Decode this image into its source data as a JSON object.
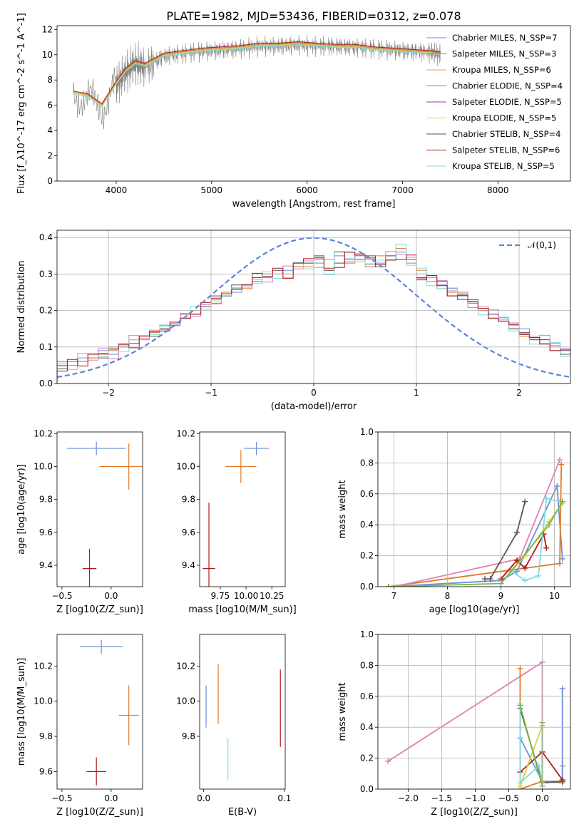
{
  "title": "PLATE=1982, MJD=53436, FIBERID=0312, z=0.078",
  "colors": {
    "Chabrier MILES": "#6a8fd9",
    "Salpeter MILES": "#e07a2a",
    "Kroupa MILES": "#e3a043",
    "Chabrier ELODIE": "#7a8a6a",
    "Salpeter ELODIE": "#9a3ab5",
    "Kroupa ELODIE": "#c9d84a",
    "Chabrier STELIB": "#555555",
    "Salpeter STELIB": "#b01818",
    "Kroupa STELIB": "#7fdbe0",
    "extra_pink": "#e37fb8",
    "extra_green": "#7ab63a",
    "gaussian": "#5a86d6",
    "data": "#808080"
  },
  "chart_data": [
    {
      "type": "line",
      "panel": "spectrum",
      "xlabel": "wavelength [Angstrom, rest frame]",
      "ylabel": "Flux [f_λ10^-17 erg cm^-2 s^-1 A^-1]",
      "xlim": [
        3380,
        8760
      ],
      "ylim": [
        0,
        12.3
      ],
      "xticks": [
        4000,
        5000,
        6000,
        7000,
        8000
      ],
      "yticks": [
        0,
        2,
        4,
        6,
        8,
        10,
        12
      ],
      "legend_position": "right",
      "legend": [
        "Chabrier MILES, N_SSP=7",
        "Salpeter MILES, N_SSP=3",
        "Kroupa MILES, N_SSP=6",
        "Chabrier ELODIE, N_SSP=4",
        "Salpeter ELODIE, N_SSP=5",
        "Kroupa ELODIE, N_SSP=5",
        "Chabrier STELIB, N_SSP=4",
        "Salpeter STELIB, N_SSP=6",
        "Kroupa STELIB, N_SSP=5"
      ],
      "series": [
        {
          "role": "data",
          "x": [
            3550,
            3700,
            3850,
            4000,
            4100,
            4200,
            4300,
            4500,
            4700,
            4900,
            5100,
            5300,
            5500,
            5700,
            5900,
            6100,
            6300,
            6500,
            6700,
            6900,
            7100,
            7300,
            7400
          ],
          "y": [
            7.0,
            6.5,
            5.8,
            7.6,
            8.6,
            9.3,
            9.0,
            9.9,
            10.1,
            10.3,
            10.4,
            10.5,
            10.7,
            10.7,
            10.8,
            10.7,
            10.7,
            10.6,
            10.5,
            10.4,
            10.3,
            10.2,
            10.0
          ]
        },
        {
          "role": "model",
          "x": [
            3550,
            3700,
            3850,
            4000,
            4100,
            4200,
            4300,
            4500,
            4700,
            4900,
            5100,
            5300,
            5500,
            5700,
            5900,
            6100,
            6300,
            6500,
            6700,
            6900,
            7100,
            7300,
            7400
          ],
          "y": [
            7.0,
            6.8,
            6.0,
            7.8,
            8.8,
            9.4,
            9.2,
            10.0,
            10.2,
            10.4,
            10.5,
            10.6,
            10.8,
            10.8,
            10.9,
            10.8,
            10.7,
            10.7,
            10.5,
            10.4,
            10.3,
            10.2,
            10.1
          ]
        }
      ]
    },
    {
      "type": "bar",
      "panel": "residual-histogram",
      "xlabel": "(data-model)/error",
      "ylabel": "Normed distribution",
      "xlim": [
        -2.5,
        2.5
      ],
      "ylim": [
        0,
        0.42
      ],
      "xticks": [
        -2,
        -1,
        0,
        1,
        2
      ],
      "yticks": [
        0.0,
        0.1,
        0.2,
        0.3,
        0.4
      ],
      "grid": true,
      "legend_position": "top-right",
      "legend": [
        "N(0,1)"
      ],
      "bin_width": 0.1,
      "series": [
        {
          "values": [
            0.06,
            0.06,
            0.07,
            0.07,
            0.09,
            0.08,
            0.11,
            0.12,
            0.13,
            0.14,
            0.16,
            0.17,
            0.18,
            0.19,
            0.21,
            0.23,
            0.24,
            0.25,
            0.27,
            0.28,
            0.29,
            0.3,
            0.31,
            0.32,
            0.33,
            0.33,
            0.34,
            0.35,
            0.34,
            0.35,
            0.34,
            0.33,
            0.35,
            0.36,
            0.34,
            0.3,
            0.29,
            0.27,
            0.26,
            0.24,
            0.22,
            0.21,
            0.19,
            0.18,
            0.16,
            0.15,
            0.13,
            0.12,
            0.11,
            0.09
          ]
        },
        {
          "values": [
            0.05,
            0.05,
            0.06,
            0.07,
            0.08,
            0.09,
            0.1,
            0.12,
            0.12,
            0.14,
            0.15,
            0.17,
            0.18,
            0.2,
            0.21,
            0.22,
            0.25,
            0.26,
            0.26,
            0.28,
            0.3,
            0.3,
            0.29,
            0.32,
            0.32,
            0.34,
            0.31,
            0.36,
            0.33,
            0.34,
            0.32,
            0.35,
            0.34,
            0.37,
            0.33,
            0.31,
            0.28,
            0.26,
            0.25,
            0.25,
            0.22,
            0.2,
            0.18,
            0.17,
            0.15,
            0.13,
            0.12,
            0.11,
            0.1,
            0.08
          ]
        },
        {
          "values": [
            0.04,
            0.06,
            0.06,
            0.08,
            0.07,
            0.1,
            0.1,
            0.11,
            0.13,
            0.13,
            0.15,
            0.16,
            0.19,
            0.19,
            0.21,
            0.24,
            0.24,
            0.27,
            0.27,
            0.29,
            0.3,
            0.31,
            0.3,
            0.33,
            0.33,
            0.35,
            0.31,
            0.33,
            0.36,
            0.34,
            0.35,
            0.32,
            0.35,
            0.34,
            0.34,
            0.29,
            0.29,
            0.28,
            0.24,
            0.23,
            0.23,
            0.2,
            0.19,
            0.17,
            0.15,
            0.14,
            0.12,
            0.12,
            0.09,
            0.08
          ]
        }
      ]
    },
    {
      "type": "scatter",
      "panel": "age-vs-metallicity",
      "xlabel": "Z [log10(Z/Z_sun)]",
      "ylabel": "age [log10(age/yr)]",
      "xlim": [
        -0.55,
        0.32
      ],
      "ylim": [
        9.27,
        10.21
      ],
      "xticks": [
        -0.5,
        0.0
      ],
      "yticks": [
        9.4,
        9.6,
        9.8,
        10.0,
        10.2
      ],
      "points": [
        {
          "x": -0.15,
          "y": 10.11,
          "xerr": 0.3,
          "yerr": 0.04
        },
        {
          "x": 0.18,
          "y": 10.0,
          "xerr": 0.3,
          "yerr": 0.14
        },
        {
          "x": -0.22,
          "y": 9.38,
          "xerr": 0.07,
          "yerr": 0.12
        }
      ]
    },
    {
      "type": "scatter",
      "panel": "age-vs-mass",
      "xlabel": "mass [log10(M/M_sun)]",
      "ylabel": "",
      "xlim": [
        9.55,
        10.38
      ],
      "ylim": [
        9.27,
        10.21
      ],
      "xticks": [
        9.75,
        10.0,
        10.25
      ],
      "yticks": [
        9.4,
        9.6,
        9.8,
        10.0,
        10.2
      ],
      "points": [
        {
          "x": 10.1,
          "y": 10.11,
          "xerr": 0.12,
          "yerr": 0.04
        },
        {
          "x": 9.95,
          "y": 10.0,
          "xerr": 0.15,
          "yerr": 0.1
        },
        {
          "x": 9.64,
          "y": 9.38,
          "xerr": 0.06,
          "yerr": 0.4
        }
      ]
    },
    {
      "type": "line",
      "panel": "mass-weight-vs-age",
      "xlabel": "age [log10(age/yr)]",
      "ylabel": "mass weight",
      "xlim": [
        6.7,
        10.3
      ],
      "ylim": [
        0.0,
        1.0
      ],
      "xticks": [
        7,
        8,
        9,
        10
      ],
      "yticks": [
        0.0,
        0.2,
        0.4,
        0.6,
        0.8,
        1.0
      ],
      "grid": true,
      "series": [
        {
          "color_key": "Chabrier MILES",
          "x": [
            6.9,
            9.0,
            9.3,
            10.05,
            10.15
          ],
          "y": [
            0.0,
            0.04,
            0.1,
            0.65,
            0.18
          ]
        },
        {
          "color_key": "Salpeter MILES",
          "x": [
            6.9,
            10.1,
            10.13
          ],
          "y": [
            0.0,
            0.15,
            0.79
          ]
        },
        {
          "color_key": "extra_pink",
          "x": [
            7.0,
            9.35,
            10.1
          ],
          "y": [
            0.0,
            0.18,
            0.82
          ]
        },
        {
          "color_key": "Chabrier STELIB",
          "x": [
            8.7,
            8.8,
            9.3,
            9.45
          ],
          "y": [
            0.05,
            0.05,
            0.35,
            0.55
          ]
        },
        {
          "color_key": "Salpeter STELIB",
          "x": [
            9.0,
            9.3,
            9.45,
            9.8,
            9.85
          ],
          "y": [
            0.05,
            0.17,
            0.12,
            0.34,
            0.25
          ]
        },
        {
          "color_key": "Kroupa STELIB",
          "x": [
            9.2,
            9.45,
            9.7,
            9.85,
            10.1
          ],
          "y": [
            0.1,
            0.04,
            0.07,
            0.57,
            0.55
          ]
        },
        {
          "color_key": "Kroupa ELODIE",
          "x": [
            9.0,
            9.45,
            9.9,
            10.15
          ],
          "y": [
            0.02,
            0.2,
            0.42,
            0.54
          ]
        },
        {
          "color_key": "extra_green",
          "x": [
            6.9,
            9.0,
            9.9,
            10.15
          ],
          "y": [
            0.0,
            0.02,
            0.4,
            0.55
          ]
        }
      ]
    },
    {
      "type": "scatter",
      "panel": "mass-vs-metallicity",
      "xlabel": "Z [log10(Z/Z_sun)]",
      "ylabel": "mass [log10(M/M_sun)]",
      "xlim": [
        -0.55,
        0.32
      ],
      "ylim": [
        9.5,
        10.38
      ],
      "xticks": [
        -0.5,
        0.0
      ],
      "yticks": [
        9.6,
        9.8,
        10.0,
        10.2
      ],
      "points": [
        {
          "x": -0.1,
          "y": 10.31,
          "xerr": 0.22,
          "yerr": 0.04
        },
        {
          "x": 0.18,
          "y": 9.92,
          "xerr": 0.1,
          "yerr": 0.17
        },
        {
          "x": -0.15,
          "y": 9.6,
          "xerr": 0.1,
          "yerr": 0.08
        }
      ]
    },
    {
      "type": "scatter",
      "panel": "mass-vs-ebv",
      "xlabel": "E(B-V)",
      "ylabel": "",
      "xlim": [
        -0.005,
        0.101
      ],
      "ylim": [
        9.5,
        10.38
      ],
      "xticks": [
        0.0,
        0.1
      ],
      "yticks": [
        9.8,
        10.0,
        10.2
      ],
      "points": [
        {
          "x": 0.003,
          "y": 9.97,
          "yerr": 0.12
        },
        {
          "x": 0.018,
          "y": 10.04,
          "yerr": 0.17
        },
        {
          "x": 0.095,
          "y": 9.96,
          "yerr": 0.22
        },
        {
          "x": 0.03,
          "y": 9.67,
          "yerr": 0.12
        }
      ]
    },
    {
      "type": "line",
      "panel": "mass-weight-vs-metallicity",
      "xlabel": "Z [log10(Z/Z_sun)]",
      "ylabel": "mass weight",
      "xlim": [
        -2.45,
        0.42
      ],
      "ylim": [
        0.0,
        1.0
      ],
      "xticks": [
        -2.0,
        -1.5,
        -1.0,
        -0.5,
        0.0
      ],
      "yticks": [
        0.0,
        0.2,
        0.4,
        0.6,
        0.8,
        1.0
      ],
      "grid": true,
      "series": [
        {
          "color_key": "extra_pink",
          "x": [
            -2.3,
            0.0,
            0.0
          ],
          "y": [
            0.18,
            0.82,
            0.41
          ]
        },
        {
          "color_key": "Salpeter MILES",
          "x": [
            -0.33,
            -0.33,
            0.0,
            0.3,
            0.3
          ],
          "y": [
            0.78,
            0.0,
            0.05,
            0.04,
            0.15
          ]
        },
        {
          "color_key": "Chabrier MILES",
          "x": [
            -0.33,
            0.0,
            0.3,
            0.3
          ],
          "y": [
            0.33,
            0.05,
            0.05,
            0.65
          ]
        },
        {
          "color_key": "Salpeter STELIB",
          "x": [
            -0.33,
            0.0,
            0.3
          ],
          "y": [
            0.11,
            0.24,
            0.06
          ]
        },
        {
          "color_key": "Chabrier STELIB",
          "x": [
            -0.33,
            -0.33,
            0.0,
            0.3
          ],
          "y": [
            0.55,
            0.52,
            0.04,
            0.05
          ]
        },
        {
          "color_key": "Kroupa STELIB",
          "x": [
            -0.33,
            -0.33,
            -0.05,
            0.0
          ],
          "y": [
            0.55,
            0.04,
            0.15,
            0.04
          ]
        },
        {
          "color_key": "Kroupa ELODIE",
          "x": [
            -0.33,
            0.0,
            0.0
          ],
          "y": [
            0.02,
            0.41,
            0.04
          ]
        },
        {
          "color_key": "extra_green",
          "x": [
            -0.33,
            0.0,
            0.0
          ],
          "y": [
            0.54,
            0.02,
            0.43
          ]
        }
      ]
    }
  ]
}
